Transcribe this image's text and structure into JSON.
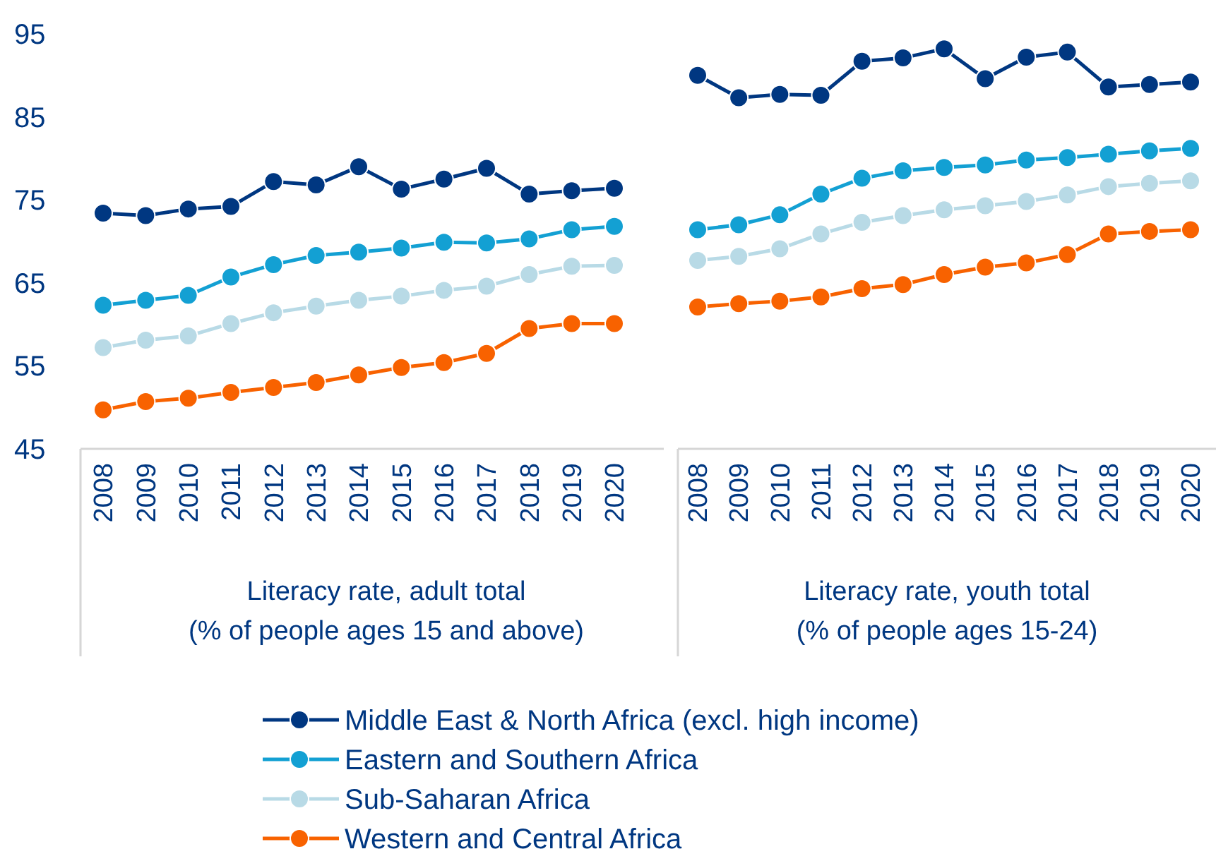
{
  "chart_data": [
    {
      "type": "line",
      "xlabel": "Literacy rate, adult total\n(% of people ages 15 and above)",
      "categories": [
        "2008",
        "2009",
        "2010",
        "2011",
        "2012",
        "2013",
        "2014",
        "2015",
        "2016",
        "2017",
        "2018",
        "2019",
        "2020"
      ],
      "ylim": [
        45,
        95
      ],
      "yticks": [
        45,
        55,
        65,
        75,
        85,
        95
      ],
      "grid": false,
      "legend": "bottom",
      "marker": "circle",
      "series": [
        {
          "name": "Middle East & North Africa (excl. high income)",
          "color": "#003781",
          "values": [
            73.4,
            73.1,
            73.9,
            74.2,
            77.2,
            76.8,
            79.0,
            76.3,
            77.5,
            78.8,
            75.7,
            76.1,
            76.4
          ]
        },
        {
          "name": "Eastern and Southern Africa",
          "color": "#13a0d3",
          "values": [
            62.3,
            62.9,
            63.5,
            65.7,
            67.2,
            68.3,
            68.7,
            69.2,
            69.9,
            69.8,
            70.3,
            71.4,
            71.8
          ]
        },
        {
          "name": "Sub-Saharan Africa",
          "color": "#b8dae6",
          "values": [
            57.2,
            58.1,
            58.6,
            60.1,
            61.4,
            62.2,
            62.9,
            63.4,
            64.1,
            64.6,
            66.0,
            67.0,
            67.1
          ]
        },
        {
          "name": "Western and Central Africa",
          "color": "#f86200",
          "values": [
            49.7,
            50.7,
            51.1,
            51.8,
            52.4,
            53.0,
            53.9,
            54.8,
            55.4,
            56.5,
            59.5,
            60.1,
            60.1
          ]
        }
      ]
    },
    {
      "type": "line",
      "xlabel": "Literacy rate, youth total\n(% of people ages 15-24)",
      "categories": [
        "2008",
        "2009",
        "2010",
        "2011",
        "2012",
        "2013",
        "2014",
        "2015",
        "2016",
        "2017",
        "2018",
        "2019",
        "2020"
      ],
      "ylim": [
        45,
        95
      ],
      "tick_labels": "x",
      "grid": false,
      "legend": false,
      "marker": "circle",
      "series": [
        {
          "color": "#003781",
          "values": [
            90.0,
            87.3,
            87.7,
            87.6,
            91.7,
            92.1,
            93.2,
            89.6,
            92.2,
            92.8,
            88.6,
            88.9,
            89.2
          ]
        },
        {
          "color": "#13a0d3",
          "values": [
            71.4,
            72.0,
            73.2,
            75.7,
            77.6,
            78.5,
            78.9,
            79.2,
            79.8,
            80.1,
            80.5,
            80.9,
            81.2
          ]
        },
        {
          "color": "#b8dae6",
          "values": [
            67.7,
            68.2,
            69.1,
            70.9,
            72.3,
            73.1,
            73.8,
            74.3,
            74.8,
            75.6,
            76.6,
            77.0,
            77.3
          ]
        },
        {
          "color": "#f86200",
          "values": [
            62.1,
            62.5,
            62.8,
            63.3,
            64.3,
            64.8,
            66.0,
            66.9,
            67.4,
            68.4,
            70.9,
            71.2,
            71.4
          ]
        }
      ]
    }
  ]
}
